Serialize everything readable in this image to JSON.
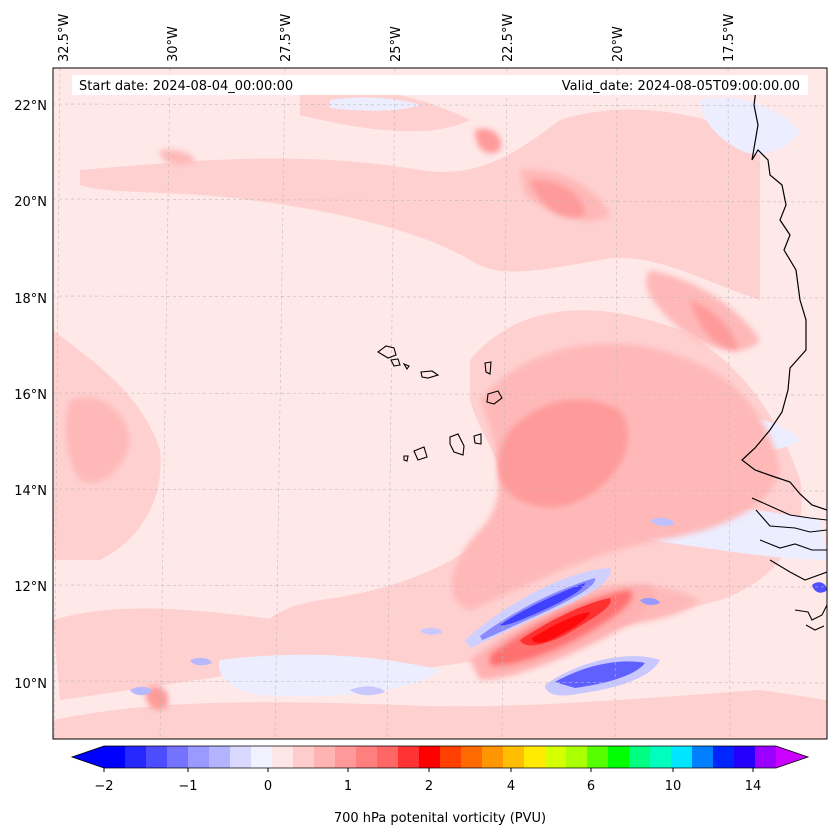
{
  "header": {
    "start_date": "Start date: 2024-08-04_00:00:00",
    "valid_date": "Valid_date: 2024-08-05T09:00:00.00"
  },
  "axes": {
    "longitude_labels": [
      "32.5°W",
      "30°W",
      "27.5°W",
      "25°W",
      "22.5°W",
      "20°W",
      "17.5°W"
    ],
    "latitude_labels": [
      "22°N",
      "20°N",
      "18°N",
      "16°N",
      "14°N",
      "12°N",
      "10°N"
    ]
  },
  "colorbar": {
    "title": "700 hPa potenital vorticity (PVU)",
    "tick_labels": [
      "−2",
      "−1",
      "0",
      "1",
      "2",
      "4",
      "6",
      "10",
      "14"
    ],
    "colors": [
      "#0000ff",
      "#2626ff",
      "#4d4dff",
      "#7373ff",
      "#9999ff",
      "#b3b3ff",
      "#d9d9ff",
      "#f2f2ff",
      "#ffe6e6",
      "#ffcccc",
      "#ffb3b3",
      "#ff9999",
      "#ff7f7f",
      "#ff6666",
      "#ff3333",
      "#ff0000",
      "#ff4000",
      "#ff6a00",
      "#ff9500",
      "#ffbf00",
      "#ffea00",
      "#d4ff00",
      "#aaff00",
      "#55ff00",
      "#00ff00",
      "#00ff80",
      "#00ffbf",
      "#00e5ff",
      "#0080ff",
      "#0026ff",
      "#2600ff",
      "#9900ff"
    ],
    "under_color": "#0000ff",
    "over_color": "#cc00ff"
  },
  "field_colors": {
    "background": "#ffe8e8",
    "light_pink": "#ffd0d0",
    "pink": "#ffb8b8",
    "red_mid": "#ff9a9a",
    "red_strong": "#ff5a5a",
    "red_core": "#ff2020",
    "blue_light": "#ecedff",
    "blue_mid": "#b9b9ff",
    "blue_strong": "#6060ff",
    "blue_core": "#3030ff"
  }
}
